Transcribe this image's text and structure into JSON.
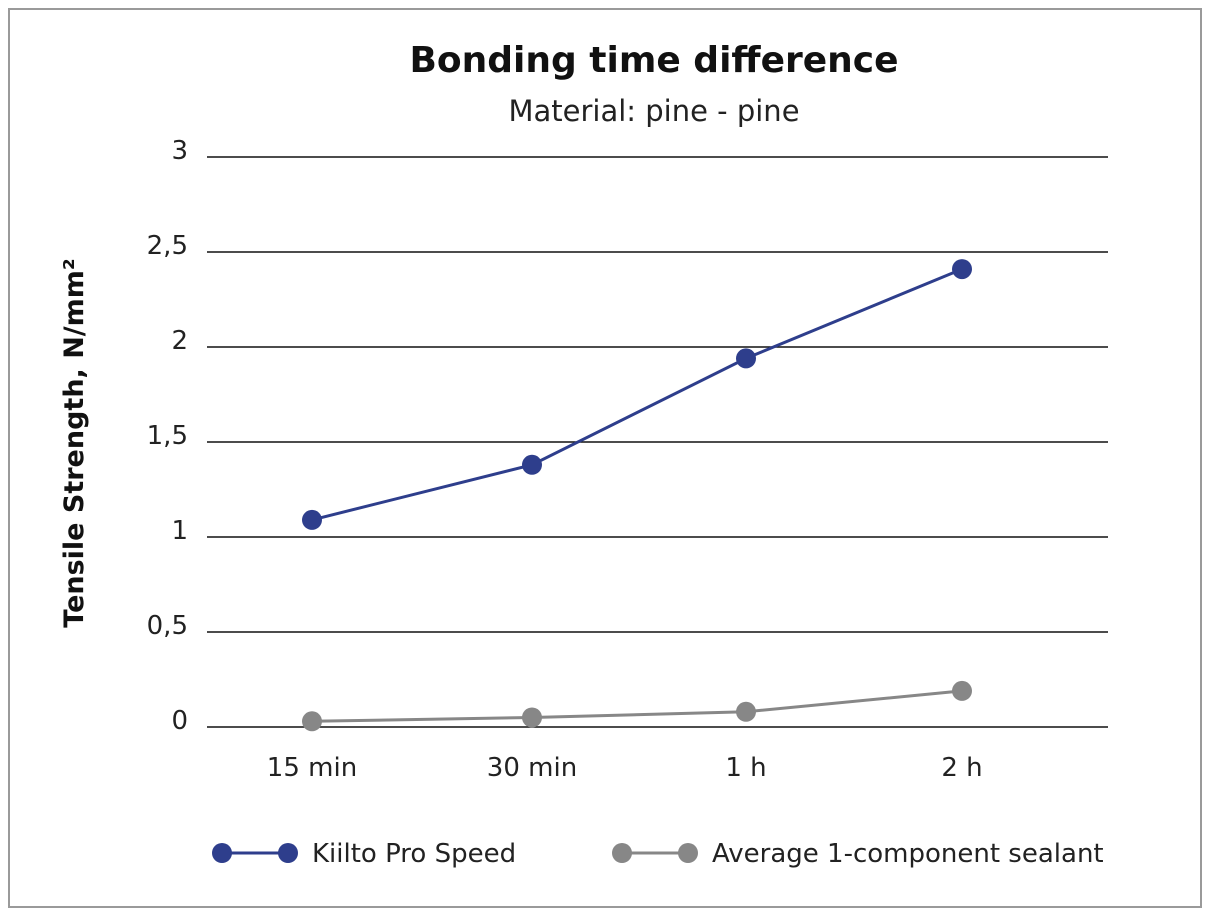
{
  "chart_data": {
    "type": "line",
    "title": "Bonding time difference",
    "subtitle": "Material: pine - pine",
    "xlabel": "",
    "ylabel": "Tensile Strength, N/mm²",
    "categories": [
      "15 min",
      "30 min",
      "1 h",
      "2 h"
    ],
    "ylim": [
      0,
      3
    ],
    "yticks": [
      0,
      0.5,
      1,
      1.5,
      2,
      2.5,
      3
    ],
    "ytick_labels": [
      "0",
      "0,5",
      "1",
      "1,5",
      "2",
      "2,5",
      "3"
    ],
    "grid": "horizontal",
    "legend_position": "bottom",
    "series": [
      {
        "name": "Kiilto Pro Speed",
        "color": "#2e3e8c",
        "values": [
          1.09,
          1.38,
          1.94,
          2.41
        ]
      },
      {
        "name": "Average 1-component sealant",
        "color": "#878787",
        "values": [
          0.03,
          0.05,
          0.08,
          0.19
        ]
      }
    ]
  }
}
